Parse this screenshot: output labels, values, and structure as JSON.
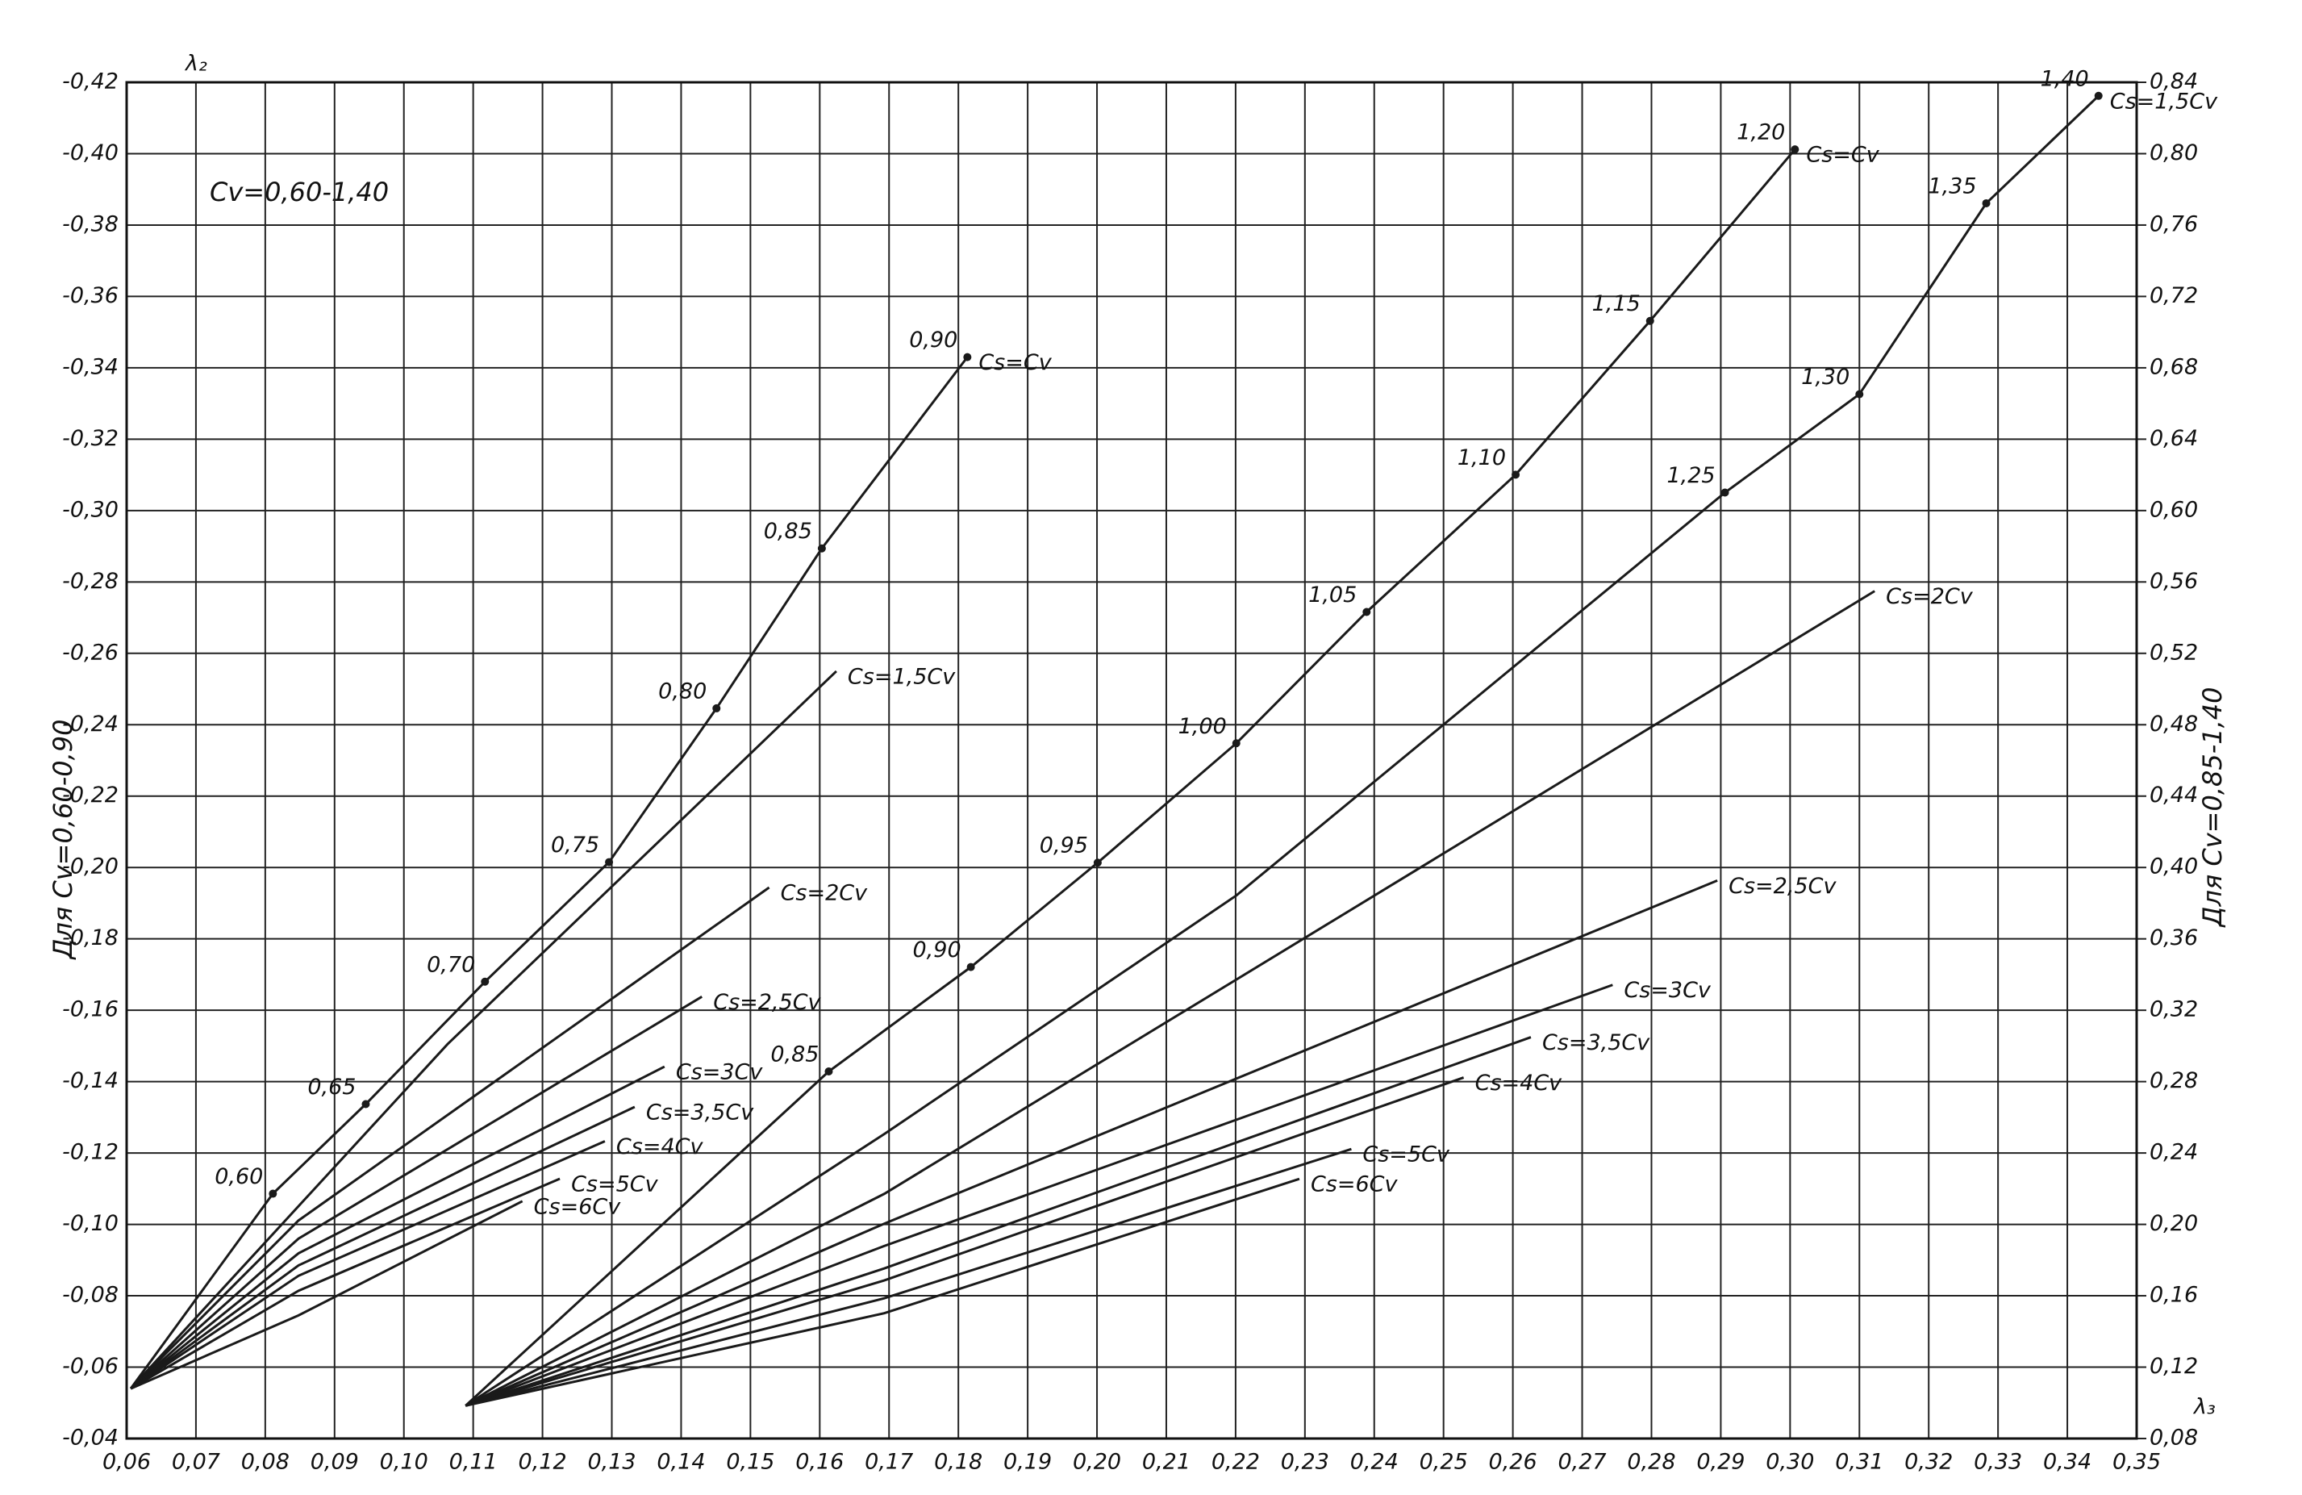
{
  "chart_data": {
    "type": "line",
    "title": "Cv=0,60-1,40",
    "y_label": "Для Cv=0,60-0,90",
    "y2_label": "Для Cv=0,85-1,40",
    "y_symbol": "λ₂",
    "y2_symbol": "λ₃",
    "grid": true,
    "color": "#1a1a1a",
    "xlim": [
      0.06,
      0.35
    ],
    "ylim": [
      -0.04,
      -0.42
    ],
    "y2lim": [
      0.08,
      0.84
    ],
    "xticks": [
      {
        "value": 0.06,
        "label": "0,06"
      },
      {
        "value": 0.07,
        "label": "0,07"
      },
      {
        "value": 0.08,
        "label": "0,08"
      },
      {
        "value": 0.09,
        "label": "0,09"
      },
      {
        "value": 0.1,
        "label": "0,10"
      },
      {
        "value": 0.11,
        "label": "0,11"
      },
      {
        "value": 0.12,
        "label": "0,12"
      },
      {
        "value": 0.13,
        "label": "0,13"
      },
      {
        "value": 0.14,
        "label": "0,14"
      },
      {
        "value": 0.15,
        "label": "0,15"
      },
      {
        "value": 0.16,
        "label": "0,16"
      },
      {
        "value": 0.17,
        "label": "0,17"
      },
      {
        "value": 0.18,
        "label": "0,18"
      },
      {
        "value": 0.19,
        "label": "0,19"
      },
      {
        "value": 0.2,
        "label": "0,20"
      },
      {
        "value": 0.21,
        "label": "0,21"
      },
      {
        "value": 0.22,
        "label": "0,22"
      },
      {
        "value": 0.23,
        "label": "0,23"
      },
      {
        "value": 0.24,
        "label": "0,24"
      },
      {
        "value": 0.25,
        "label": "0,25"
      },
      {
        "value": 0.26,
        "label": "0,26"
      },
      {
        "value": 0.27,
        "label": "0,27"
      },
      {
        "value": 0.28,
        "label": "0,28"
      },
      {
        "value": 0.29,
        "label": "0,29"
      },
      {
        "value": 0.3,
        "label": "0,30"
      },
      {
        "value": 0.31,
        "label": "0,31"
      },
      {
        "value": 0.32,
        "label": "0,32"
      },
      {
        "value": 0.33,
        "label": "0,33"
      },
      {
        "value": 0.34,
        "label": "0,34"
      },
      {
        "value": 0.35,
        "label": "0,35"
      }
    ],
    "yticks": [
      {
        "value": -0.42,
        "label": "-0,42"
      },
      {
        "value": -0.4,
        "label": "-0,40"
      },
      {
        "value": -0.38,
        "label": "-0,38"
      },
      {
        "value": -0.36,
        "label": "-0,36"
      },
      {
        "value": -0.34,
        "label": "-0,34"
      },
      {
        "value": -0.32,
        "label": "-0,32"
      },
      {
        "value": -0.3,
        "label": "-0,30"
      },
      {
        "value": -0.28,
        "label": "-0,28"
      },
      {
        "value": -0.26,
        "label": "-0,26"
      },
      {
        "value": -0.24,
        "label": "-0,24"
      },
      {
        "value": -0.22,
        "label": "-0,22"
      },
      {
        "value": -0.2,
        "label": "-0,20"
      },
      {
        "value": -0.18,
        "label": "-0,18"
      },
      {
        "value": -0.16,
        "label": "-0,16"
      },
      {
        "value": -0.14,
        "label": "-0,14"
      },
      {
        "value": -0.12,
        "label": "-0,12"
      },
      {
        "value": -0.1,
        "label": "-0,10"
      },
      {
        "value": -0.08,
        "label": "-0,08"
      },
      {
        "value": -0.06,
        "label": "-0,06"
      },
      {
        "value": -0.04,
        "label": "-0,04"
      }
    ],
    "y2ticks": [
      {
        "value": 0.84,
        "label": "0,84"
      },
      {
        "value": 0.8,
        "label": "0,80"
      },
      {
        "value": 0.76,
        "label": "0,76"
      },
      {
        "value": 0.72,
        "label": "0,72"
      },
      {
        "value": 0.68,
        "label": "0,68"
      },
      {
        "value": 0.64,
        "label": "0,64"
      },
      {
        "value": 0.6,
        "label": "0,60"
      },
      {
        "value": 0.56,
        "label": "0,56"
      },
      {
        "value": 0.52,
        "label": "0,52"
      },
      {
        "value": 0.48,
        "label": "0,48"
      },
      {
        "value": 0.44,
        "label": "0,44"
      },
      {
        "value": 0.4,
        "label": "0,40"
      },
      {
        "value": 0.36,
        "label": "0,36"
      },
      {
        "value": 0.32,
        "label": "0,32"
      },
      {
        "value": 0.28,
        "label": "0,28"
      },
      {
        "value": 0.24,
        "label": "0,24"
      },
      {
        "value": 0.2,
        "label": "0,20"
      },
      {
        "value": 0.16,
        "label": "0,16"
      },
      {
        "value": 0.12,
        "label": "0,12"
      },
      {
        "value": 0.08,
        "label": "0,08"
      }
    ],
    "series": [
      {
        "name": "Cs=Cv",
        "x": [
          0.0606,
          0.0811,
          0.0945,
          0.1117,
          0.1296,
          0.1451,
          0.1603,
          0.1813
        ],
        "values": [
          -0.054,
          -0.1086,
          -0.1337,
          -0.168,
          -0.2015,
          -0.2446,
          -0.2894,
          -0.343
        ],
        "point_labels": [
          null,
          "0,60",
          "0,65",
          "0,70",
          "0,75",
          "0,80",
          "0,85",
          "0,90"
        ]
      },
      {
        "name": "Cs=1,5Cv",
        "x": [
          0.0606,
          0.1063,
          0.1624
        ],
        "values": [
          -0.054,
          -0.1505,
          -0.255
        ]
      },
      {
        "name": "Cs=2Cv",
        "x": [
          0.0606,
          0.0848,
          0.1527
        ],
        "values": [
          -0.054,
          -0.1011,
          -0.1944
        ]
      },
      {
        "name": "Cs=2,5Cv",
        "x": [
          0.0606,
          0.0848,
          0.143
        ],
        "values": [
          -0.054,
          -0.096,
          -0.1638
        ]
      },
      {
        "name": "Cs=3Cv",
        "x": [
          0.0606,
          0.0848,
          0.1376
        ],
        "values": [
          -0.054,
          -0.0919,
          -0.1442
        ]
      },
      {
        "name": "Cs=3,5Cv",
        "x": [
          0.0606,
          0.0848,
          0.1333
        ],
        "values": [
          -0.054,
          -0.0885,
          -0.1329
        ]
      },
      {
        "name": "Cs=4Cv",
        "x": [
          0.0606,
          0.0848,
          0.129
        ],
        "values": [
          -0.054,
          -0.0856,
          -0.1233
        ]
      },
      {
        "name": "Cs=5Cv",
        "x": [
          0.0606,
          0.0848,
          0.1225
        ],
        "values": [
          -0.054,
          -0.0814,
          -0.1128
        ]
      },
      {
        "name": "Cs=6Cv",
        "x": [
          0.0606,
          0.0848,
          0.1171
        ],
        "values": [
          -0.054,
          -0.0745,
          -0.1065
        ]
      },
      {
        "name": "Cs=Cv",
        "axis": "y2",
        "x": [
          0.1089,
          0.1613,
          0.1818,
          0.2001,
          0.2201,
          0.2389,
          0.2604,
          0.2798,
          0.3007
        ],
        "values": [
          0.0984,
          0.2857,
          0.3442,
          0.4027,
          0.4696,
          0.5432,
          0.6201,
          0.7063,
          0.8024
        ],
        "point_labels": [
          null,
          "0,85",
          "0,90",
          "0,95",
          "1,00",
          "1,05",
          "1,10",
          "1,15",
          "1,20"
        ]
      },
      {
        "name": "Cs=1,5Cv",
        "axis": "y2",
        "x": [
          0.1089,
          0.1693,
          0.2201,
          0.2906,
          0.31,
          0.3283,
          0.3445
        ],
        "values": [
          0.0984,
          0.2506,
          0.3843,
          0.6101,
          0.6652,
          0.7722,
          0.8324
        ],
        "point_labels": [
          null,
          null,
          null,
          "1,25",
          "1,30",
          "1,35",
          "1,40"
        ]
      },
      {
        "name": "Cs=2Cv",
        "axis": "y2",
        "x": [
          0.1089,
          0.1693,
          0.3122
        ],
        "values": [
          0.0984,
          0.2171,
          0.5549
        ]
      },
      {
        "name": "Cs=2,5Cv",
        "axis": "y2",
        "x": [
          0.1089,
          0.1693,
          0.2895
        ],
        "values": [
          0.0984,
          0.2004,
          0.3927
        ]
      },
      {
        "name": "Cs=3Cv",
        "axis": "y2",
        "x": [
          0.1089,
          0.1693,
          0.2744
        ],
        "values": [
          0.0984,
          0.1879,
          0.3342
        ]
      },
      {
        "name": "Cs=3,5Cv",
        "axis": "y2",
        "x": [
          0.1089,
          0.1693,
          0.2626
        ],
        "values": [
          0.0984,
          0.1753,
          0.3049
        ]
      },
      {
        "name": "Cs=4Cv",
        "axis": "y2",
        "x": [
          0.1089,
          0.1693,
          0.2529
        ],
        "values": [
          0.0984,
          0.1686,
          0.2823
        ]
      },
      {
        "name": "Cs=5Cv",
        "axis": "y2",
        "x": [
          0.1089,
          0.1693,
          0.2367
        ],
        "values": [
          0.0984,
          0.1586,
          0.2422
        ]
      },
      {
        "name": "Cs=6Cv",
        "axis": "y2",
        "x": [
          0.1089,
          0.1693,
          0.2292
        ],
        "values": [
          0.0984,
          0.1502,
          0.2255
        ]
      }
    ]
  }
}
